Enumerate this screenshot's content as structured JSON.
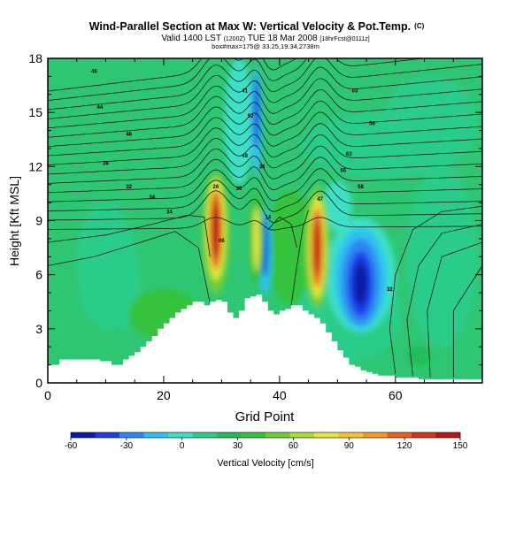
{
  "chart_data": {
    "type": "heatmap",
    "title": "Wind-Parallel Section at Max W: Vertical Velocity & Pot.Temp.",
    "title_mark": "(C)",
    "subtitle_valid": "Valid 1400 LST",
    "subtitle_time": "(1200Z)",
    "subtitle_date": "TUE 18 Mar 2008",
    "subtitle_run": "[18hrFcst@0111z]",
    "subtitle_box": "box#max=175@ 33.25,19.34,2738m",
    "xlabel": "Grid Point",
    "ylabel": "Height [Kft MSL]",
    "xlim": [
      0,
      75
    ],
    "ylim": [
      0,
      18
    ],
    "x_ticks": [
      0,
      20,
      40,
      60
    ],
    "y_ticks": [
      0,
      3,
      6,
      9,
      12,
      15,
      18
    ],
    "colorbar": {
      "label": "Vertical Velocity [cm/s]",
      "tick_labels": [
        "-60",
        "-30",
        "0",
        "30",
        "60",
        "90",
        "120",
        "150"
      ],
      "tick_values": [
        -60,
        -30,
        0,
        30,
        60,
        90,
        120,
        150
      ],
      "min": -60,
      "max": 150,
      "colors": [
        "#0a1aa8",
        "#1c3ce8",
        "#2f86f2",
        "#2ec2f0",
        "#3de0c6",
        "#2ccc8a",
        "#22bd58",
        "#36c23e",
        "#6ccf3a",
        "#a8dc3a",
        "#e6e640",
        "#f2c232",
        "#f19a26",
        "#e8601c",
        "#d8321a",
        "#b81414"
      ]
    },
    "terrain": {
      "x": [
        0,
        2,
        6,
        9,
        11,
        13,
        14,
        15,
        16,
        17,
        18,
        19,
        20,
        21,
        22,
        23,
        24,
        25,
        26,
        27,
        28,
        29,
        30,
        31,
        32,
        33,
        34,
        35,
        36,
        37,
        38,
        39,
        40,
        41,
        42,
        43,
        44,
        45,
        46,
        47,
        48,
        49,
        50,
        51,
        52,
        53,
        54,
        55,
        56,
        57,
        60,
        63,
        64,
        66,
        70,
        75
      ],
      "height_kft": [
        1.0,
        1.3,
        1.3,
        1.2,
        1.0,
        1.3,
        1.5,
        1.7,
        2.0,
        2.3,
        2.6,
        3.0,
        3.3,
        3.6,
        3.9,
        4.1,
        4.3,
        4.5,
        4.5,
        4.3,
        4.5,
        4.6,
        4.5,
        3.9,
        3.6,
        4.0,
        4.7,
        4.8,
        4.9,
        4.5,
        4.0,
        3.8,
        4.0,
        4.1,
        4.3,
        4.3,
        4.0,
        3.8,
        3.6,
        3.3,
        2.8,
        2.3,
        1.8,
        1.4,
        1.0,
        0.9,
        0.7,
        0.6,
        0.5,
        0.4,
        0.3,
        0.3,
        0.2,
        0.2,
        0.2,
        0.2
      ]
    },
    "vertical_velocity_features": [
      {
        "name": "updraft-1",
        "x": 29,
        "y": 8.5,
        "value": 150
      },
      {
        "name": "updraft-2",
        "x": 36,
        "y": 8.0,
        "value": 80
      },
      {
        "name": "updraft-3",
        "x": 46.5,
        "y": 7.5,
        "value": 150
      },
      {
        "name": "downdraft-1",
        "x": 54,
        "y": 5.5,
        "value": -60
      },
      {
        "name": "downdraft-2",
        "x": 37.5,
        "y": 7.5,
        "value": -45
      },
      {
        "name": "downdraft-3",
        "x": 36,
        "y": 14.5,
        "value": -35
      }
    ],
    "theta_contour_labels": [
      {
        "x": 8,
        "y": 17.3,
        "text": "46"
      },
      {
        "x": 9,
        "y": 15.3,
        "text": "44"
      },
      {
        "x": 14,
        "y": 13.8,
        "text": "46"
      },
      {
        "x": 10,
        "y": 12.2,
        "text": "36"
      },
      {
        "x": 14,
        "y": 10.9,
        "text": "32"
      },
      {
        "x": 18,
        "y": 10.3,
        "text": "34"
      },
      {
        "x": 21,
        "y": 9.5,
        "text": "34"
      },
      {
        "x": 34,
        "y": 16.2,
        "text": "41"
      },
      {
        "x": 35,
        "y": 14.8,
        "text": "52"
      },
      {
        "x": 34,
        "y": 12.6,
        "text": "48"
      },
      {
        "x": 37,
        "y": 12.0,
        "text": "36"
      },
      {
        "x": 33,
        "y": 10.8,
        "text": "36"
      },
      {
        "x": 29,
        "y": 10.9,
        "text": "26"
      },
      {
        "x": 38,
        "y": 9.2,
        "text": "14"
      },
      {
        "x": 30,
        "y": 7.9,
        "text": "06"
      },
      {
        "x": 47,
        "y": 10.2,
        "text": "47"
      },
      {
        "x": 53,
        "y": 16.2,
        "text": "63"
      },
      {
        "x": 56,
        "y": 14.4,
        "text": "56"
      },
      {
        "x": 52,
        "y": 12.7,
        "text": "63"
      },
      {
        "x": 51,
        "y": 11.8,
        "text": "55"
      },
      {
        "x": 54,
        "y": 10.9,
        "text": "56"
      },
      {
        "x": 59,
        "y": 5.2,
        "text": "32"
      }
    ]
  }
}
